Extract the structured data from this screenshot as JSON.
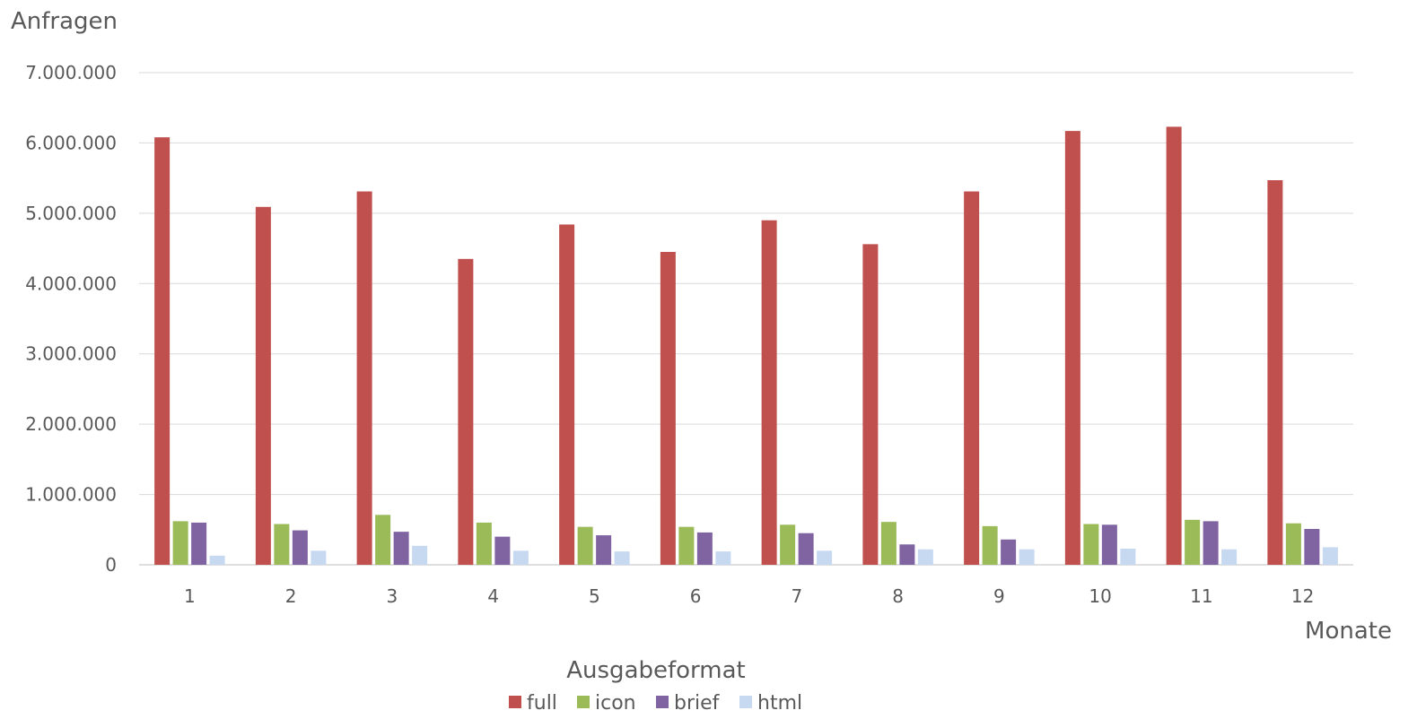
{
  "chart_data": {
    "type": "bar",
    "ylabel": "Anfragen",
    "xlabel": "Monate",
    "legend_title": "Ausgabeformat",
    "legend_position": "bottom",
    "grid": true,
    "ylim": [
      0,
      7000000
    ],
    "yticks": [
      "0",
      "1.000.000",
      "2.000.000",
      "3.000.000",
      "4.000.000",
      "5.000.000",
      "6.000.000",
      "7.000.000"
    ],
    "ytick_values": [
      0,
      1000000,
      2000000,
      3000000,
      4000000,
      5000000,
      6000000,
      7000000
    ],
    "categories": [
      "1",
      "2",
      "3",
      "4",
      "5",
      "6",
      "7",
      "8",
      "9",
      "10",
      "11",
      "12"
    ],
    "series": [
      {
        "name": "full",
        "color": "#C0504D",
        "values": [
          6080000,
          5090000,
          5310000,
          4350000,
          4840000,
          4450000,
          4900000,
          4560000,
          5310000,
          6170000,
          6230000,
          5470000
        ]
      },
      {
        "name": "icon",
        "color": "#9BBB59",
        "values": [
          620000,
          580000,
          710000,
          600000,
          540000,
          540000,
          570000,
          610000,
          550000,
          580000,
          640000,
          590000
        ]
      },
      {
        "name": "brief",
        "color": "#8064A2",
        "values": [
          600000,
          490000,
          470000,
          400000,
          420000,
          460000,
          450000,
          290000,
          360000,
          570000,
          620000,
          510000
        ]
      },
      {
        "name": "html",
        "color": "#C6D9F1",
        "values": [
          130000,
          200000,
          270000,
          200000,
          190000,
          190000,
          200000,
          220000,
          220000,
          230000,
          220000,
          250000
        ]
      }
    ]
  }
}
